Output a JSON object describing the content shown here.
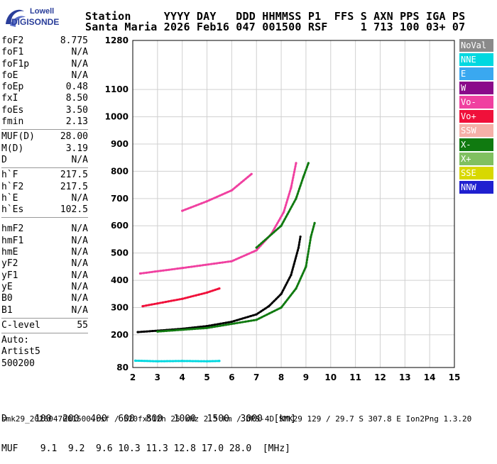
{
  "logo": {
    "line1": "Lowell",
    "line2": "DIGISONDE"
  },
  "header": {
    "row1": "Station     YYYY DAY   DDD HHMMSS P1  FFS S AXN PPS IGA PS",
    "row2": "Santa Maria 2026 Feb16 047 001500 RSF     1 713 100 03+ 07"
  },
  "params_group1": [
    {
      "label": "foF2",
      "value": "8.775"
    },
    {
      "label": "foF1",
      "value": "N/A"
    },
    {
      "label": "foF1p",
      "value": "N/A"
    },
    {
      "label": "foE",
      "value": "N/A"
    },
    {
      "label": "foEp",
      "value": "0.48"
    },
    {
      "label": "fxI",
      "value": "8.50"
    },
    {
      "label": "foEs",
      "value": "3.50"
    },
    {
      "label": "fmin",
      "value": "2.13"
    }
  ],
  "params_group2": [
    {
      "label": "MUF(D)",
      "value": "28.00"
    },
    {
      "label": "M(D)",
      "value": "3.19"
    },
    {
      "label": "D",
      "value": "N/A"
    }
  ],
  "params_group3": [
    {
      "label": "h`F",
      "value": "217.5"
    },
    {
      "label": "h`F2",
      "value": "217.5"
    },
    {
      "label": "h`E",
      "value": "N/A"
    },
    {
      "label": "h`Es",
      "value": "102.5"
    }
  ],
  "params_group4": [
    {
      "label": "hmF2",
      "value": "N/A"
    },
    {
      "label": "hmF1",
      "value": "N/A"
    },
    {
      "label": "hmE",
      "value": "N/A"
    },
    {
      "label": "yF2",
      "value": "N/A"
    },
    {
      "label": "yF1",
      "value": "N/A"
    },
    {
      "label": "yE",
      "value": "N/A"
    },
    {
      "label": "B0",
      "value": "N/A"
    },
    {
      "label": "B1",
      "value": "N/A"
    }
  ],
  "params_group5": [
    {
      "label": "C-level",
      "value": "55"
    }
  ],
  "auto": {
    "line1": "Auto:",
    "line2": "Artist5",
    "line3": "500200"
  },
  "legend": [
    {
      "label": "NoVal",
      "color": "#8a8a8a"
    },
    {
      "label": "NNE",
      "color": "#00d8e0"
    },
    {
      "label": "E",
      "color": "#3aa8f0"
    },
    {
      "label": "W",
      "color": "#8a0a8a"
    },
    {
      "label": "Vo-",
      "color": "#f040a0"
    },
    {
      "label": "Vo+",
      "color": "#f0103a"
    },
    {
      "label": "SSW",
      "color": "#f5b0a8"
    },
    {
      "label": "X-",
      "color": "#107a10"
    },
    {
      "label": "X+",
      "color": "#80c060"
    },
    {
      "label": "SSE",
      "color": "#d8d800"
    },
    {
      "label": "NNW",
      "color": "#2020d0"
    }
  ],
  "bottom": {
    "d_row": "D     100  200  400  600  800  1000  1500  3000  [km]",
    "muf_row": "MUF    9.1  9.2  9.6 10.3 11.3 12.8 17.0 28.0  [MHz]"
  },
  "footer": "smk29_2026047001500.rsf / 520fx512h 25 kHz 2.5 km / DPS-4D SMK29 129 / 29.7 S 307.8 E Ion2Png 1.3.20",
  "chart_data": {
    "type": "scatter",
    "xlim": [
      2,
      15
    ],
    "ylim": [
      80,
      1280
    ],
    "x_ticks": [
      2,
      3,
      4,
      5,
      6,
      7,
      8,
      9,
      10,
      11,
      12,
      13,
      14,
      15
    ],
    "y_ticks": [
      80,
      200,
      300,
      400,
      500,
      600,
      700,
      800,
      900,
      1000,
      1100,
      1280
    ],
    "grid": true,
    "traces": [
      {
        "name": "O-mode F2 trace",
        "color": "#000000",
        "points": [
          [
            2.2,
            210
          ],
          [
            3,
            215
          ],
          [
            4,
            222
          ],
          [
            5,
            232
          ],
          [
            6,
            248
          ],
          [
            7,
            275
          ],
          [
            7.5,
            305
          ],
          [
            8,
            350
          ],
          [
            8.4,
            420
          ],
          [
            8.7,
            520
          ],
          [
            8.775,
            560
          ]
        ]
      },
      {
        "name": "X-mode F2 trace",
        "color": "#107a10",
        "points": [
          [
            3,
            212
          ],
          [
            5,
            225
          ],
          [
            7,
            255
          ],
          [
            8,
            300
          ],
          [
            8.6,
            370
          ],
          [
            9,
            450
          ],
          [
            9.2,
            560
          ],
          [
            9.35,
            610
          ]
        ]
      },
      {
        "name": "2-hop trace",
        "color": "#f040a0",
        "points": [
          [
            2.3,
            425
          ],
          [
            4,
            445
          ],
          [
            6,
            470
          ],
          [
            7,
            510
          ],
          [
            7.6,
            570
          ],
          [
            8.1,
            650
          ],
          [
            8.4,
            740
          ],
          [
            8.6,
            830
          ]
        ]
      },
      {
        "name": "2-hop X trace",
        "color": "#107a10",
        "points": [
          [
            7,
            520
          ],
          [
            8,
            600
          ],
          [
            8.6,
            700
          ],
          [
            8.9,
            780
          ],
          [
            9.1,
            830
          ]
        ]
      },
      {
        "name": "3-hop trace",
        "color": "#f0103a",
        "points": [
          [
            2.4,
            305
          ],
          [
            3,
            315
          ],
          [
            4,
            332
          ],
          [
            5,
            355
          ],
          [
            5.5,
            370
          ]
        ]
      },
      {
        "name": "multi-hop trace",
        "color": "#f040a0",
        "points": [
          [
            4,
            655
          ],
          [
            5,
            690
          ],
          [
            6,
            730
          ],
          [
            6.8,
            790
          ]
        ]
      },
      {
        "name": "Es trace",
        "color": "#00d8e0",
        "points": [
          [
            2.1,
            105
          ],
          [
            3,
            103
          ],
          [
            4,
            104
          ],
          [
            5,
            103
          ],
          [
            5.5,
            104
          ]
        ]
      }
    ]
  }
}
